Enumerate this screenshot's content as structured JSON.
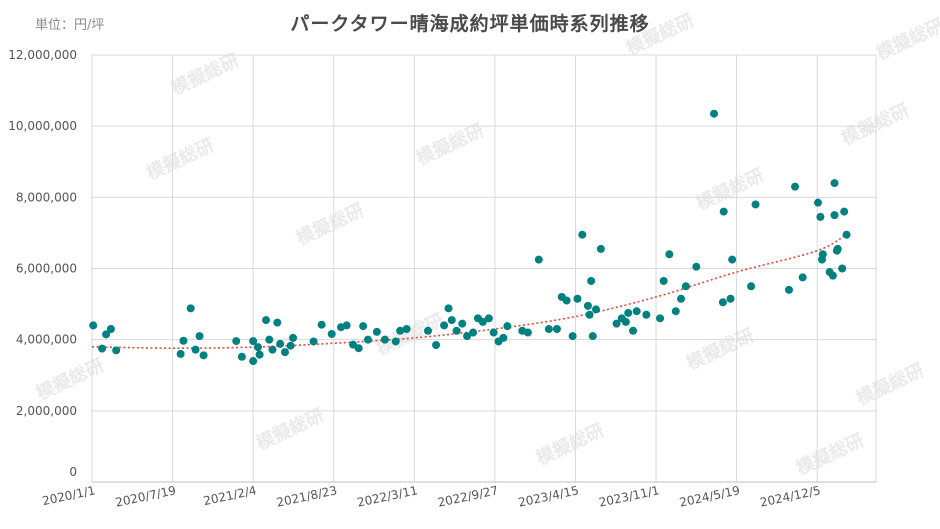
{
  "header": {
    "unit": "単位：円/坪",
    "title": "パークタワー晴海成約坪単価時系列推移"
  },
  "watermark": {
    "text": "模擬総研"
  },
  "colors": {
    "point": "#008080",
    "trend": "#e8453c",
    "grid": "#d9d9d9",
    "axis": "#bfbfbf"
  },
  "chart_data": {
    "type": "scatter",
    "title": "パークタワー晴海成約坪単価時系列推移",
    "xlabel": "",
    "ylabel": "",
    "unit": "単位：円/坪",
    "x_type": "date",
    "xlim": [
      "2020-01-01",
      "2025-04-30"
    ],
    "ylim": [
      0,
      12000000
    ],
    "grid": true,
    "legend": "none",
    "x_ticks": [
      {
        "date": "2020-01-01",
        "label": "2020/1/1"
      },
      {
        "date": "2020-07-19",
        "label": "2020/7/19"
      },
      {
        "date": "2021-02-04",
        "label": "2021/2/4"
      },
      {
        "date": "2021-08-23",
        "label": "2021/8/23"
      },
      {
        "date": "2022-03-11",
        "label": "2022/3/11"
      },
      {
        "date": "2022-09-27",
        "label": "2022/9/27"
      },
      {
        "date": "2023-04-15",
        "label": "2023/4/15"
      },
      {
        "date": "2023-11-01",
        "label": "2023/11/1"
      },
      {
        "date": "2024-05-19",
        "label": "2024/5/19"
      },
      {
        "date": "2024-12-05",
        "label": "2024/12/5"
      }
    ],
    "y_ticks": [
      {
        "value": 0,
        "label": "0"
      },
      {
        "value": 2000000,
        "label": "2,000,000"
      },
      {
        "value": 4000000,
        "label": "4,000,000"
      },
      {
        "value": 6000000,
        "label": "6,000,000"
      },
      {
        "value": 8000000,
        "label": "8,000,000"
      },
      {
        "value": 10000000,
        "label": "10,000,000"
      },
      {
        "value": 12000000,
        "label": "12,000,000"
      }
    ],
    "series": [
      {
        "color": "#008080",
        "points": [
          [
            "2020-01-04",
            4400000
          ],
          [
            "2020-01-26",
            3750000
          ],
          [
            "2020-02-05",
            4150000
          ],
          [
            "2020-02-17",
            4300000
          ],
          [
            "2020-03-01",
            3700000
          ],
          [
            "2020-08-08",
            3600000
          ],
          [
            "2020-08-15",
            3970000
          ],
          [
            "2020-09-02",
            4880000
          ],
          [
            "2020-09-14",
            3720000
          ],
          [
            "2020-09-24",
            4100000
          ],
          [
            "2020-10-04",
            3560000
          ],
          [
            "2020-12-24",
            3960000
          ],
          [
            "2021-01-07",
            3520000
          ],
          [
            "2021-02-04",
            3400000
          ],
          [
            "2021-02-04",
            3960000
          ],
          [
            "2021-02-16",
            3790000
          ],
          [
            "2021-02-20",
            3580000
          ],
          [
            "2021-03-08",
            4550000
          ],
          [
            "2021-03-16",
            4000000
          ],
          [
            "2021-03-24",
            3720000
          ],
          [
            "2021-04-05",
            4480000
          ],
          [
            "2021-04-12",
            3880000
          ],
          [
            "2021-04-24",
            3650000
          ],
          [
            "2021-05-08",
            3830000
          ],
          [
            "2021-05-14",
            4050000
          ],
          [
            "2021-07-04",
            3950000
          ],
          [
            "2021-07-24",
            4420000
          ],
          [
            "2021-08-18",
            4160000
          ],
          [
            "2021-09-10",
            4350000
          ],
          [
            "2021-09-24",
            4400000
          ],
          [
            "2021-10-10",
            3860000
          ],
          [
            "2021-10-24",
            3760000
          ],
          [
            "2021-11-04",
            4380000
          ],
          [
            "2021-11-16",
            4000000
          ],
          [
            "2021-12-08",
            4220000
          ],
          [
            "2021-12-28",
            4000000
          ],
          [
            "2022-01-24",
            3950000
          ],
          [
            "2022-02-04",
            4250000
          ],
          [
            "2022-02-20",
            4300000
          ],
          [
            "2022-04-14",
            4250000
          ],
          [
            "2022-05-04",
            3850000
          ],
          [
            "2022-05-24",
            4400000
          ],
          [
            "2022-06-04",
            4880000
          ],
          [
            "2022-06-12",
            4550000
          ],
          [
            "2022-06-24",
            4250000
          ],
          [
            "2022-07-08",
            4450000
          ],
          [
            "2022-07-20",
            4100000
          ],
          [
            "2022-08-04",
            4200000
          ],
          [
            "2022-08-16",
            4600000
          ],
          [
            "2022-08-28",
            4500000
          ],
          [
            "2022-09-12",
            4600000
          ],
          [
            "2022-09-24",
            4200000
          ],
          [
            "2022-10-06",
            3950000
          ],
          [
            "2022-10-18",
            4050000
          ],
          [
            "2022-10-28",
            4380000
          ],
          [
            "2022-12-04",
            4250000
          ],
          [
            "2022-12-18",
            4200000
          ],
          [
            "2023-01-14",
            6250000
          ],
          [
            "2023-02-08",
            4300000
          ],
          [
            "2023-02-28",
            4300000
          ],
          [
            "2023-03-12",
            5200000
          ],
          [
            "2023-03-24",
            5100000
          ],
          [
            "2023-04-08",
            4100000
          ],
          [
            "2023-04-20",
            5150000
          ],
          [
            "2023-05-02",
            6950000
          ],
          [
            "2023-05-16",
            4950000
          ],
          [
            "2023-05-20",
            4700000
          ],
          [
            "2023-06-05",
            4850000
          ],
          [
            "2023-06-17",
            6550000
          ],
          [
            "2023-05-24",
            5650000
          ],
          [
            "2023-05-28",
            4100000
          ],
          [
            "2023-07-26",
            4450000
          ],
          [
            "2023-08-08",
            4600000
          ],
          [
            "2023-08-18",
            4500000
          ],
          [
            "2023-08-24",
            4750000
          ],
          [
            "2023-09-05",
            4250000
          ],
          [
            "2023-09-14",
            4800000
          ],
          [
            "2023-10-08",
            4700000
          ],
          [
            "2023-11-11",
            4600000
          ],
          [
            "2023-11-20",
            5650000
          ],
          [
            "2023-12-04",
            6400000
          ],
          [
            "2023-12-20",
            4800000
          ],
          [
            "2024-01-02",
            5150000
          ],
          [
            "2024-01-14",
            5500000
          ],
          [
            "2024-02-09",
            6050000
          ],
          [
            "2024-03-24",
            10350000
          ],
          [
            "2024-04-17",
            7600000
          ],
          [
            "2024-04-15",
            5050000
          ],
          [
            "2024-05-08",
            6250000
          ],
          [
            "2024-05-04",
            5150000
          ],
          [
            "2024-06-24",
            5500000
          ],
          [
            "2024-07-05",
            7800000
          ],
          [
            "2024-10-11",
            8300000
          ],
          [
            "2024-09-26",
            5400000
          ],
          [
            "2024-10-30",
            5750000
          ],
          [
            "2024-12-07",
            7850000
          ],
          [
            "2024-12-13",
            7450000
          ],
          [
            "2024-12-17",
            6250000
          ],
          [
            "2024-12-19",
            6400000
          ],
          [
            "2025-01-05",
            5900000
          ],
          [
            "2025-01-13",
            5800000
          ],
          [
            "2025-01-25",
            6550000
          ],
          [
            "2025-01-17",
            8400000
          ],
          [
            "2025-01-17",
            7500000
          ],
          [
            "2025-01-23",
            6500000
          ],
          [
            "2025-02-05",
            6000000
          ],
          [
            "2025-02-10",
            7600000
          ],
          [
            "2025-02-16",
            6950000
          ]
        ]
      }
    ],
    "trendline": {
      "style": "dotted",
      "color": "#e8453c",
      "points": [
        [
          "2020-01-01",
          3800000
        ],
        [
          "2020-07-19",
          3760000
        ],
        [
          "2021-02-04",
          3790000
        ],
        [
          "2021-08-23",
          3900000
        ],
        [
          "2022-03-11",
          4050000
        ],
        [
          "2022-09-27",
          4300000
        ],
        [
          "2023-04-15",
          4650000
        ],
        [
          "2023-11-01",
          5200000
        ],
        [
          "2024-05-19",
          5900000
        ],
        [
          "2024-12-05",
          6500000
        ],
        [
          "2025-02-20",
          7000000
        ]
      ]
    }
  }
}
